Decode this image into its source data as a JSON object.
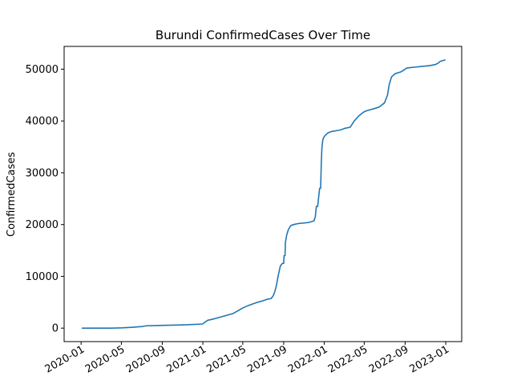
{
  "chart_data": {
    "type": "line",
    "title": "Burundi  ConfirmedCases Over Time",
    "xlabel": "",
    "ylabel": "ConfirmedCases",
    "grid": false,
    "legend": "none",
    "x_ticks": [
      "2020-01",
      "2020-05",
      "2020-09",
      "2021-01",
      "2021-05",
      "2021-09",
      "2022-01",
      "2022-05",
      "2022-09",
      "2023-01"
    ],
    "y_ticks": [
      0,
      10000,
      20000,
      30000,
      40000,
      50000
    ],
    "xlim": [
      "2019-11-11",
      "2023-02-18"
    ],
    "ylim": [
      -2600,
      54400
    ],
    "series": [
      {
        "color": "#1f77b4",
        "x": [
          "2020-01-03",
          "2020-03-31",
          "2020-05-01",
          "2020-06-01",
          "2020-07-01",
          "2020-07-15",
          "2020-08-15",
          "2020-09-15",
          "2020-10-15",
          "2020-11-15",
          "2020-12-31",
          "2021-01-15",
          "2021-02-01",
          "2021-02-15",
          "2021-03-01",
          "2021-03-15",
          "2021-04-01",
          "2021-04-15",
          "2021-05-01",
          "2021-05-15",
          "2021-06-01",
          "2021-06-15",
          "2021-07-01",
          "2021-07-15",
          "2021-07-25",
          "2021-08-01",
          "2021-08-05",
          "2021-08-10",
          "2021-08-15",
          "2021-08-22",
          "2021-08-28",
          "2021-09-01",
          "2021-09-02",
          "2021-09-05",
          "2021-09-06",
          "2021-09-10",
          "2021-09-15",
          "2021-09-22",
          "2021-10-01",
          "2021-10-15",
          "2021-11-01",
          "2021-11-15",
          "2021-12-01",
          "2021-12-05",
          "2021-12-08",
          "2021-12-12",
          "2021-12-18",
          "2021-12-21",
          "2021-12-23",
          "2021-12-25",
          "2021-12-28",
          "2022-01-01",
          "2022-01-05",
          "2022-01-10",
          "2022-01-15",
          "2022-01-25",
          "2022-02-05",
          "2022-02-20",
          "2022-03-05",
          "2022-03-20",
          "2022-04-01",
          "2022-04-15",
          "2022-04-25",
          "2022-05-01",
          "2022-05-10",
          "2022-05-20",
          "2022-06-01",
          "2022-06-15",
          "2022-07-01",
          "2022-07-10",
          "2022-07-15",
          "2022-07-22",
          "2022-08-01",
          "2022-08-10",
          "2022-08-20",
          "2022-09-01",
          "2022-09-05",
          "2022-09-15",
          "2022-10-01",
          "2022-11-01",
          "2022-11-15",
          "2022-12-01",
          "2022-12-10",
          "2022-12-15",
          "2022-12-25",
          "2022-12-31"
        ],
        "y": [
          0,
          0,
          50,
          150,
          300,
          450,
          500,
          550,
          600,
          650,
          800,
          1500,
          1750,
          2000,
          2250,
          2500,
          2800,
          3300,
          3900,
          4300,
          4700,
          5000,
          5300,
          5600,
          5700,
          6300,
          7000,
          8200,
          10000,
          12000,
          12500,
          12500,
          14000,
          14000,
          16500,
          18000,
          19000,
          19800,
          20000,
          20200,
          20300,
          20400,
          20700,
          21500,
          23500,
          23500,
          27000,
          27000,
          32000,
          35000,
          36500,
          37000,
          37300,
          37600,
          37800,
          38000,
          38100,
          38300,
          38600,
          38800,
          40000,
          41000,
          41500,
          41800,
          42000,
          42200,
          42400,
          42700,
          43500,
          45000,
          47000,
          48500,
          49100,
          49300,
          49500,
          50000,
          50200,
          50300,
          50400,
          50600,
          50700,
          50900,
          51200,
          51500,
          51700,
          51800
        ]
      }
    ]
  }
}
